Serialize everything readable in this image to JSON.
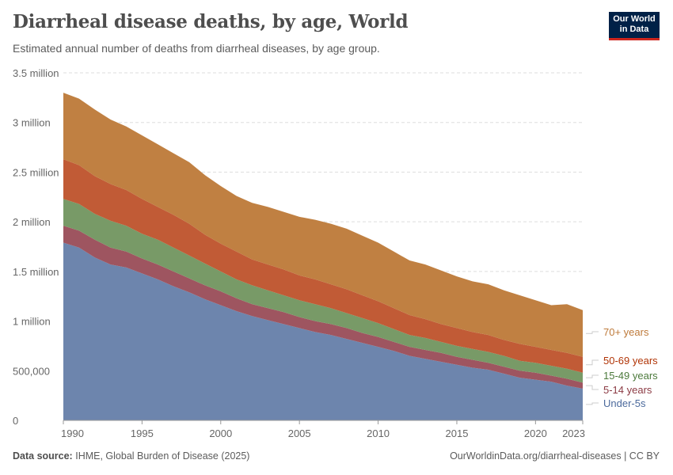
{
  "header": {
    "title": "Diarrheal disease deaths, by age, World",
    "subtitle": "Estimated annual number of deaths from diarrheal diseases, by age group.",
    "logo": "Our World in Data"
  },
  "footer": {
    "source_label": "Data source:",
    "source": "IHME, Global Burden of Disease (2025)",
    "url": "OurWorldinData.org/diarrheal-diseases | CC BY"
  },
  "chart_data": {
    "type": "area",
    "stacked": true,
    "title": "Diarrheal disease deaths, by age, World",
    "xlabel": "",
    "ylabel": "",
    "ylim": [
      0,
      3500000
    ],
    "xlim": [
      1990,
      2023
    ],
    "grid": "horizontal dashed",
    "legend": "right (inline labels)",
    "y_ticks": [
      {
        "v": 0,
        "label": "0"
      },
      {
        "v": 500000,
        "label": "500,000"
      },
      {
        "v": 1000000,
        "label": "1 million"
      },
      {
        "v": 1500000,
        "label": "1.5 million"
      },
      {
        "v": 2000000,
        "label": "2 million"
      },
      {
        "v": 2500000,
        "label": "2.5 million"
      },
      {
        "v": 3000000,
        "label": "3 million"
      },
      {
        "v": 3500000,
        "label": "3.5 million"
      }
    ],
    "x_ticks": [
      {
        "v": 1990,
        "label": "1990"
      },
      {
        "v": 1995,
        "label": "1995"
      },
      {
        "v": 2000,
        "label": "2000"
      },
      {
        "v": 2005,
        "label": "2005"
      },
      {
        "v": 2010,
        "label": "2010"
      },
      {
        "v": 2015,
        "label": "2015"
      },
      {
        "v": 2020,
        "label": "2020"
      },
      {
        "v": 2023,
        "label": "2023"
      }
    ],
    "x": [
      1990,
      1991,
      1992,
      1993,
      1994,
      1995,
      1996,
      1997,
      1998,
      1999,
      2000,
      2001,
      2002,
      2003,
      2004,
      2005,
      2006,
      2007,
      2008,
      2009,
      2010,
      2011,
      2012,
      2013,
      2014,
      2015,
      2016,
      2017,
      2018,
      2019,
      2020,
      2021,
      2022,
      2023
    ],
    "series": [
      {
        "name": "Under-5s",
        "color": "#6d85ad",
        "label_color": "#4c6a9c",
        "values": [
          1790000,
          1740000,
          1640000,
          1570000,
          1540000,
          1480000,
          1420000,
          1350000,
          1290000,
          1220000,
          1160000,
          1100000,
          1050000,
          1010000,
          970000,
          930000,
          890000,
          860000,
          820000,
          780000,
          740000,
          700000,
          650000,
          620000,
          590000,
          560000,
          530000,
          510000,
          470000,
          430000,
          410000,
          390000,
          350000,
          320000
        ]
      },
      {
        "name": "5-14 years",
        "color": "#9e5560",
        "label_color": "#8c3b44",
        "values": [
          170000,
          170000,
          180000,
          170000,
          160000,
          150000,
          150000,
          150000,
          140000,
          140000,
          140000,
          130000,
          120000,
          120000,
          120000,
          110000,
          110000,
          110000,
          110000,
          100000,
          100000,
          90000,
          90000,
          90000,
          90000,
          80000,
          80000,
          70000,
          70000,
          70000,
          70000,
          60000,
          70000,
          60000
        ]
      },
      {
        "name": "15-49 years",
        "color": "#789a67",
        "label_color": "#4c7a3c",
        "values": [
          270000,
          270000,
          260000,
          270000,
          260000,
          250000,
          250000,
          240000,
          230000,
          220000,
          200000,
          190000,
          190000,
          180000,
          170000,
          170000,
          170000,
          160000,
          150000,
          150000,
          140000,
          130000,
          120000,
          120000,
          110000,
          110000,
          110000,
          110000,
          110000,
          100000,
          100000,
          100000,
          100000,
          100000
        ]
      },
      {
        "name": "50-69 years",
        "color": "#c15b36",
        "label_color": "#b13507",
        "values": [
          400000,
          390000,
          380000,
          370000,
          360000,
          350000,
          330000,
          330000,
          320000,
          290000,
          280000,
          280000,
          260000,
          260000,
          260000,
          250000,
          250000,
          240000,
          240000,
          230000,
          220000,
          210000,
          200000,
          190000,
          180000,
          180000,
          170000,
          170000,
          160000,
          170000,
          160000,
          160000,
          160000,
          160000
        ]
      },
      {
        "name": "70+ years",
        "color": "#c08042",
        "label_color": "#be7a3a",
        "values": [
          670000,
          670000,
          670000,
          650000,
          640000,
          640000,
          630000,
          620000,
          620000,
          600000,
          580000,
          560000,
          570000,
          580000,
          580000,
          590000,
          600000,
          610000,
          610000,
          600000,
          590000,
          570000,
          550000,
          550000,
          540000,
          520000,
          510000,
          510000,
          500000,
          490000,
          470000,
          450000,
          490000,
          470000
        ]
      }
    ]
  }
}
